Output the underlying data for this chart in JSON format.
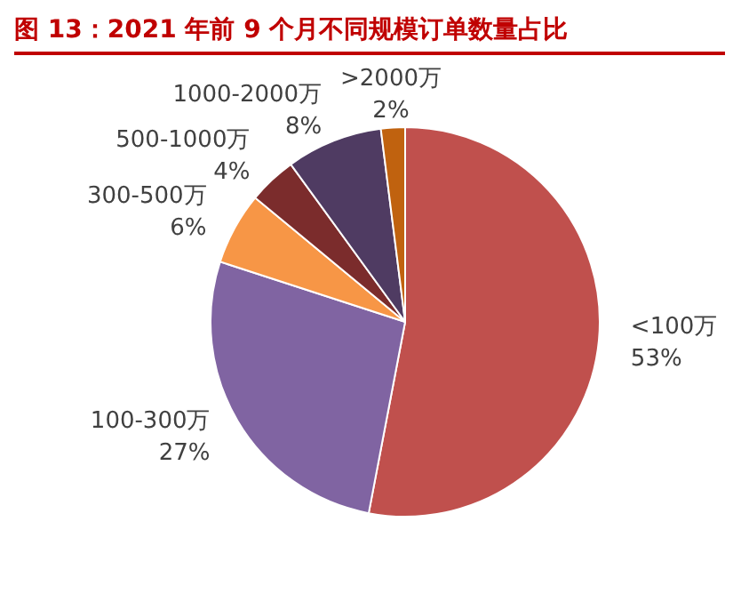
{
  "chart_data": {
    "type": "pie",
    "title": "图 13：2021 年前 9 个月不同规模订单数量占比",
    "categories": [
      "<100万",
      "100-300万",
      "300-500万",
      "500-1000万",
      "1000-2000万",
      ">2000万"
    ],
    "values": [
      53,
      27,
      6,
      4,
      8,
      2
    ],
    "colors": [
      "#c0504d",
      "#8064a2",
      "#f79646",
      "#7b2c2c",
      "#4f3b62",
      "#c0620f"
    ],
    "value_labels": [
      "53%",
      "27%",
      "6%",
      "4%",
      "8%",
      "2%"
    ],
    "legend": false
  }
}
